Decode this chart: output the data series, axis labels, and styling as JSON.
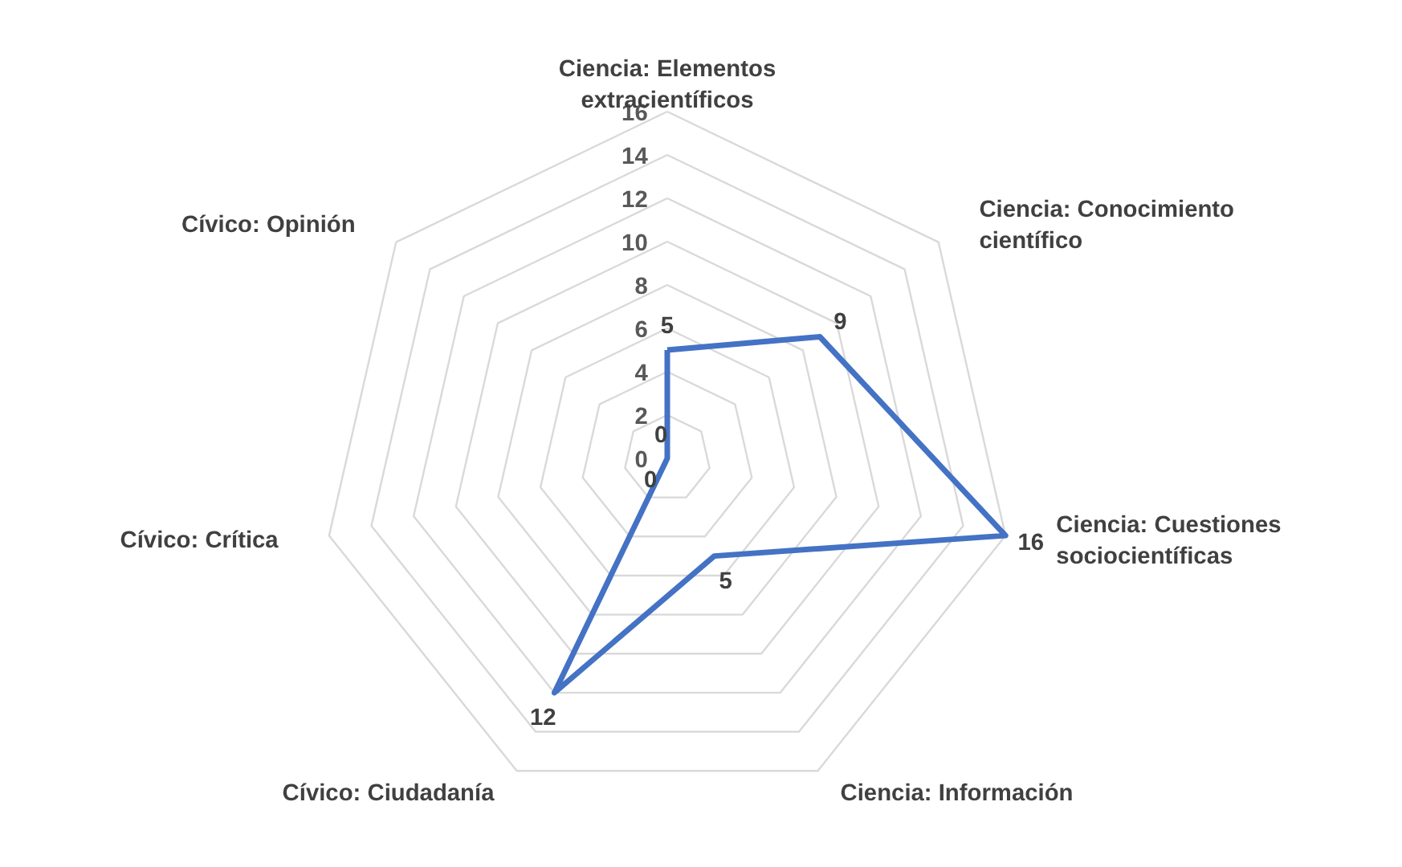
{
  "chart_data": {
    "type": "radar",
    "categories": [
      "Ciencia: Elementos extracientíficos",
      "Ciencia: Conocimiento científico",
      "Ciencia: Cuestiones sociocientíficas",
      "Ciencia: Información",
      "Cívico: Ciudadanía",
      "Cívico: Crítica",
      "Cívico: Opinión"
    ],
    "series": [
      {
        "color": "#4472c4",
        "values": [
          5,
          9,
          16,
          5,
          12,
          0,
          0
        ]
      }
    ],
    "ylim": [
      0,
      16
    ],
    "yticks": [
      0,
      2,
      4,
      6,
      8,
      10,
      12,
      14,
      16
    ],
    "grid": true,
    "data_labels": true
  }
}
